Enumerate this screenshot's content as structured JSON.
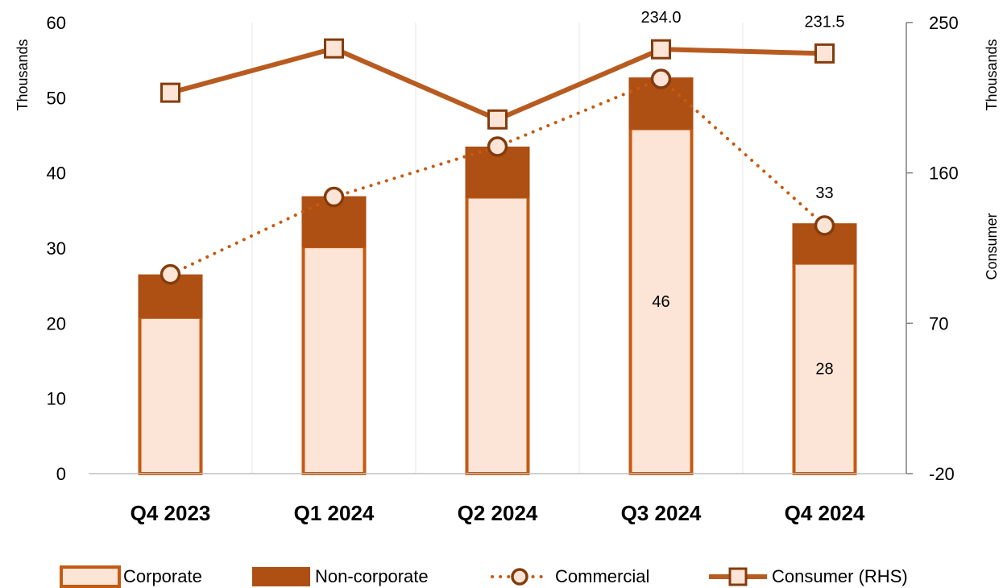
{
  "chart_data": {
    "type": "bar",
    "categories": [
      "Q4 2023",
      "Q1 2024",
      "Q2 2024",
      "Q3 2024",
      "Q4 2024"
    ],
    "left_axis": {
      "title": "Thousands",
      "ylim": [
        0,
        60
      ],
      "ticks": [
        0,
        10,
        20,
        30,
        40,
        50,
        60
      ],
      "tick_labels": [
        "0",
        "10",
        "20",
        "30",
        "40",
        "50",
        "60"
      ]
    },
    "right_axis": {
      "title_top": "Thousands",
      "title": "Consumer",
      "ylim": [
        -20,
        250
      ],
      "ticks": [
        -20,
        70,
        160,
        250
      ],
      "tick_labels": [
        "-20",
        "70",
        "160",
        "250"
      ]
    },
    "series": [
      {
        "name": "Corporate",
        "type": "stacked-bar",
        "axis": "left",
        "values": [
          20.8,
          30.2,
          36.8,
          45.9,
          28.0
        ]
      },
      {
        "name": "Non-corporate",
        "type": "stacked-bar",
        "axis": "left",
        "values": [
          5.7,
          6.7,
          6.7,
          6.8,
          5.3
        ]
      },
      {
        "name": "Commercial",
        "type": "line",
        "style": "dotted",
        "marker": "circle",
        "axis": "left",
        "values": [
          26.5,
          36.8,
          43.5,
          52.5,
          33.0
        ]
      },
      {
        "name": "Consumer (RHS)",
        "type": "line",
        "style": "solid",
        "marker": "square",
        "axis": "right",
        "values": [
          208.0,
          234.5,
          192.0,
          234.0,
          231.5
        ]
      }
    ],
    "data_labels": [
      {
        "series": "Corporate",
        "index": 3,
        "text": "46"
      },
      {
        "series": "Corporate",
        "index": 4,
        "text": "28"
      },
      {
        "series": "Commercial",
        "index": 4,
        "text": "33"
      },
      {
        "series": "Consumer (RHS)",
        "index": 3,
        "text": "234.0"
      },
      {
        "series": "Consumer (RHS)",
        "index": 4,
        "text": "231.5"
      }
    ],
    "legend": {
      "position": "bottom",
      "items": [
        "Corporate",
        "Non-corporate",
        "Commercial",
        "Consumer (RHS)"
      ]
    },
    "grid": {
      "vertical": true,
      "horizontal": false
    },
    "colors": {
      "corporate_fill": "#FCE4D6",
      "corporate_border": "#C55A11",
      "noncorporate_fill": "#AE4F13",
      "commercial_line": "#C55A11",
      "commercial_marker_fill": "#FCE4D6",
      "commercial_marker_border": "#843C0C",
      "consumer_line": "#B85B20",
      "consumer_marker_fill": "#FCE4D6",
      "consumer_marker_border": "#843C0C",
      "axis": "#7F7F7F",
      "grid": "#E7E7E7"
    }
  }
}
